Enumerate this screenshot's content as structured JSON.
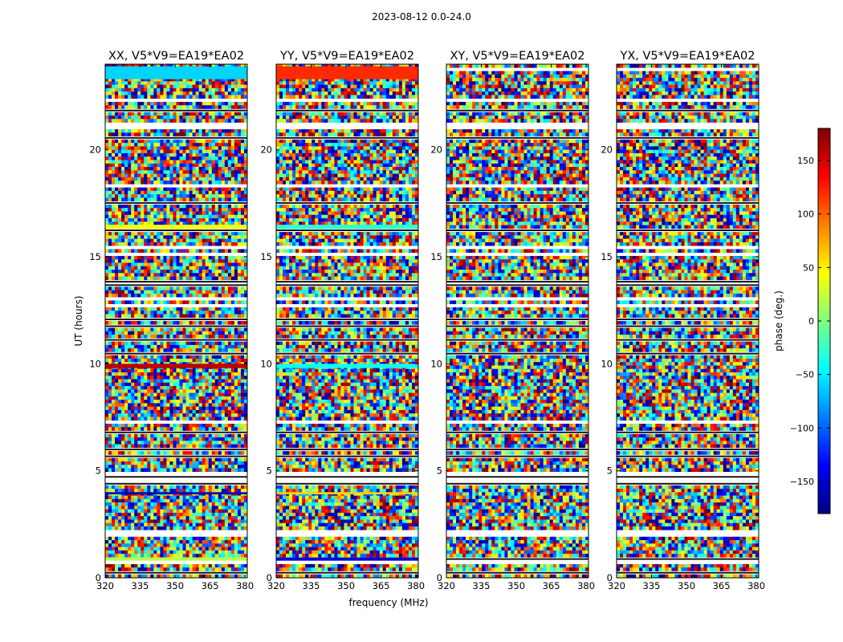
{
  "figure": {
    "suptitle": "2023-08-12 0.0-24.0",
    "xlabel": "frequency (MHz)",
    "ylabel": "UT (hours)"
  },
  "colorbar": {
    "label": "phase (deg.)",
    "range": [
      -180,
      180
    ],
    "ticks": [
      150,
      100,
      50,
      0,
      -50,
      -100,
      -150
    ],
    "tick_labels": [
      "150",
      "100",
      "50",
      "0",
      "−50",
      "−100",
      "−150"
    ],
    "colormap": "jet",
    "colors": [
      "#00007f",
      "#0000ff",
      "#007fff",
      "#00ffff",
      "#7fff7f",
      "#ffff00",
      "#ff7f00",
      "#ff0000",
      "#7f0000"
    ]
  },
  "chart_data": [
    {
      "type": "heatmap",
      "title": "XX, V5*V9=EA19*EA02",
      "xlabel": "",
      "ylabel": "UT (hours)",
      "xlim": [
        320,
        381
      ],
      "ylim": [
        0,
        24
      ],
      "xticks": [
        320,
        335,
        350,
        365,
        380
      ],
      "yticks": [
        0,
        5,
        10,
        15,
        20
      ],
      "value": "phase (deg.)",
      "coherent_bands": [
        {
          "ut": [
            23.3,
            23.9
          ],
          "phase": -60,
          "note": "smooth band"
        },
        {
          "ut": [
            9.8,
            10.0
          ],
          "phase": 160,
          "note": "red band"
        },
        {
          "ut": [
            16.3,
            16.5
          ],
          "phase": 40
        },
        {
          "ut": [
            3.9,
            4.0
          ],
          "phase": -160
        },
        {
          "ut": [
            0.8,
            0.95
          ],
          "phase": 20
        }
      ]
    },
    {
      "type": "heatmap",
      "title": "YY, V5*V9=EA19*EA02",
      "xlabel": "frequency (MHz)",
      "ylabel": "",
      "xlim": [
        320,
        381
      ],
      "ylim": [
        0,
        24
      ],
      "xticks": [
        320,
        335,
        350,
        365,
        380
      ],
      "yticks": [
        0,
        5,
        10,
        15,
        20
      ],
      "value": "phase (deg.)",
      "coherent_bands": [
        {
          "ut": [
            23.3,
            23.9
          ],
          "phase": 120,
          "note": "smooth band"
        },
        {
          "ut": [
            9.8,
            10.0
          ],
          "phase": -40
        },
        {
          "ut": [
            16.3,
            16.5
          ],
          "phase": -30
        },
        {
          "ut": [
            3.9,
            4.0
          ],
          "phase": 60
        },
        {
          "ut": [
            0.8,
            0.95
          ],
          "phase": -150
        }
      ]
    },
    {
      "type": "heatmap",
      "title": "XY, V5*V9=EA19*EA02",
      "xlabel": "",
      "ylabel": "",
      "xlim": [
        320,
        381
      ],
      "ylim": [
        0,
        24
      ],
      "xticks": [
        320,
        335,
        350,
        365,
        380
      ],
      "yticks": [
        0,
        5,
        10,
        15,
        20
      ],
      "value": "phase (deg.)",
      "coherent_bands": []
    },
    {
      "type": "heatmap",
      "title": "YX, V5*V9=EA19*EA02",
      "xlabel": "",
      "ylabel": "",
      "xlim": [
        320,
        381
      ],
      "ylim": [
        0,
        24
      ],
      "xticks": [
        320,
        335,
        350,
        365,
        380
      ],
      "yticks": [
        0,
        5,
        10,
        15,
        20
      ],
      "value": "phase (deg.)",
      "coherent_bands": []
    }
  ]
}
